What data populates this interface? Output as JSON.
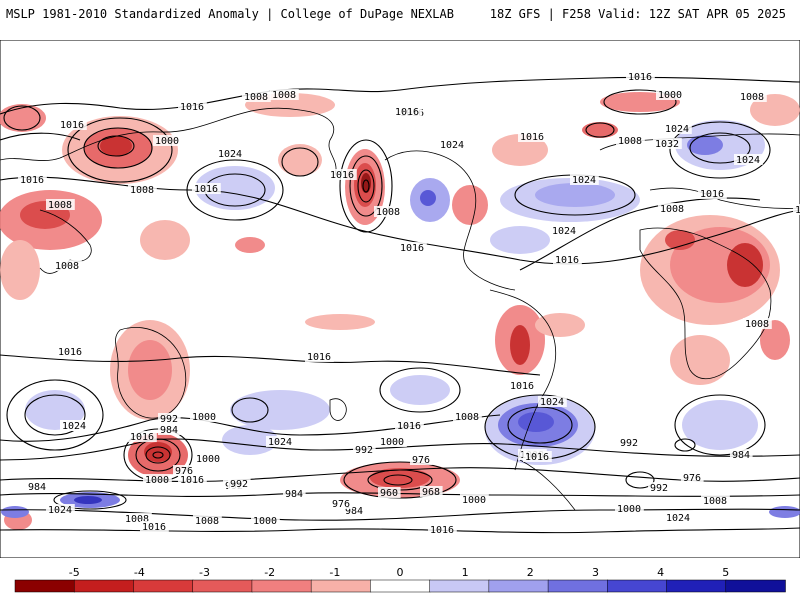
{
  "header": {
    "left_title": "MSLP 1981-2010 Standardized Anomaly | College of DuPage NEXLAB",
    "right_title": "18Z GFS | F258 Valid: 12Z SAT APR 05 2025"
  },
  "isobar_labels": [
    "1016",
    "1008",
    "1016",
    "1016",
    "1016",
    "1008",
    "1008",
    "1000",
    "1016",
    "1008",
    "1024",
    "1016",
    "1008",
    "1016",
    "1024",
    "1032",
    "1024",
    "1008",
    "1024",
    "1016",
    "1016",
    "1008",
    "1016",
    "1024",
    "1008",
    "1016",
    "1016",
    "1008",
    "1016",
    "1008",
    "1000",
    "1024",
    "1008",
    "1016",
    "1016",
    "1024",
    "992",
    "984",
    "1000",
    "1016",
    "1024",
    "1024",
    "992",
    "1008",
    "1016",
    "1000",
    "1000",
    "992",
    "976",
    "1008",
    "1024",
    "976",
    "984",
    "992",
    "1016",
    "984",
    "1000",
    "1016",
    "992",
    "984",
    "1008",
    "976",
    "960",
    "968",
    "1000",
    "1024",
    "1008",
    "1000",
    "984",
    "976",
    "992",
    "1008",
    "1016",
    "1000",
    "1016",
    "1024"
  ],
  "colorbar": {
    "ticks": [
      "-5",
      "-4",
      "-3",
      "-2",
      "-1",
      "0",
      "1",
      "2",
      "3",
      "4",
      "5"
    ],
    "colors": [
      "#8b0000",
      "#c41e1e",
      "#d83a3a",
      "#e55a5a",
      "#f07f7f",
      "#f7b0a8",
      "#ffffff",
      "#c8c8f5",
      "#a0a0ee",
      "#7070e0",
      "#4646d2",
      "#2020b8",
      "#10109a"
    ]
  },
  "colors": {
    "neg_strong": "#c41e1e",
    "neg_mid": "#e55a5a",
    "neg_light": "#f7b0a8",
    "pos_light": "#c8c8f5",
    "pos_mid": "#7070e0",
    "pos_strong": "#2020b8",
    "coast": "#000000"
  }
}
